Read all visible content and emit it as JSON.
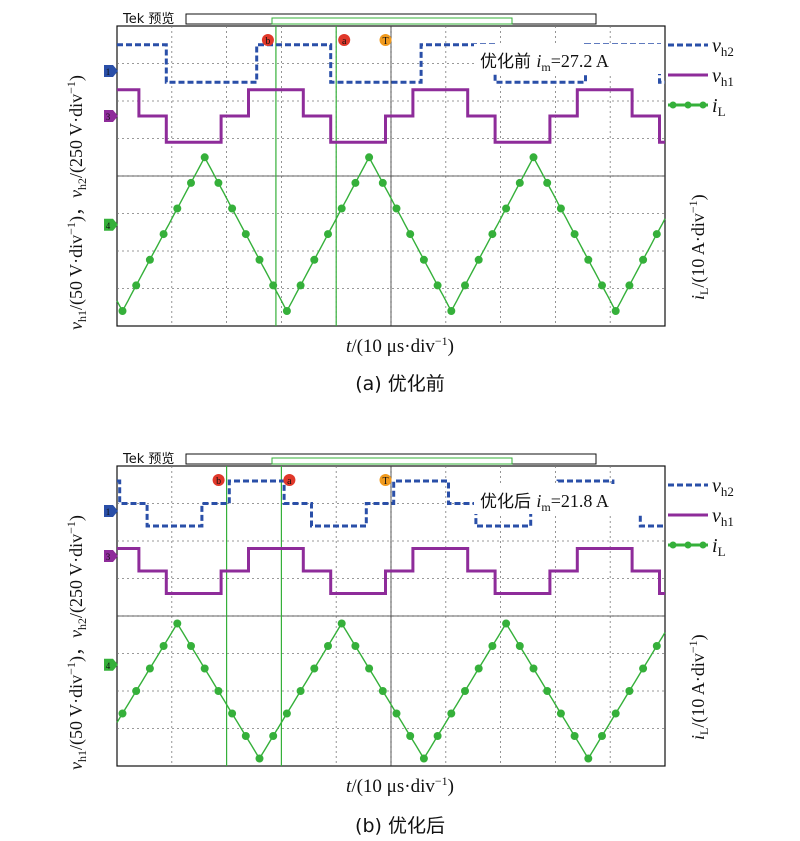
{
  "colors": {
    "vh2": "#2a4fa8",
    "vh1": "#8e2c9a",
    "iL": "#35b03a",
    "marker_red": "#e0382a",
    "marker_orange": "#f09a1e"
  },
  "scope_header": "Tek 预览",
  "channel_markers": [
    "1",
    "3",
    "4"
  ],
  "cursor_labels": {
    "b": "b",
    "a": "a",
    "T": "T"
  },
  "axis_text": {
    "ylabel_left_a": "v",
    "ylabel_left_sub1": "h1",
    "ylabel_left_rest1": "/(50 V·div",
    "ylabel_left_sup": "−1",
    "ylabel_left_close": ")，",
    "ylabel_left_v2": "v",
    "ylabel_left_sub2": "h2",
    "ylabel_left_rest2": "/(250 V·div",
    "ylabel_right_i": "i",
    "ylabel_right_sub": "L",
    "ylabel_right_rest": "/(10 A·div",
    "xlabel_t": "t",
    "xlabel_rest": "/(10 μs·div",
    "sup": "−1",
    "close": ")"
  },
  "legend": {
    "vh2": {
      "sym": "v",
      "sub": "h2"
    },
    "vh1": {
      "sym": "v",
      "sub": "h1"
    },
    "iL": {
      "sym": "i",
      "sub": "L"
    }
  },
  "chart_data": [
    {
      "type": "line",
      "caption": "(a) 优化前",
      "annotation": {
        "prefix": "优化前 ",
        "sym": "i",
        "sub": "m",
        "value": "=27.2 A"
      },
      "x_divisions": 10,
      "y_divisions": 8,
      "x_unit": "10 μs/div",
      "series": [
        {
          "key": "vh2",
          "shape": "two-level square wave",
          "high_div": 7.5,
          "low_div": 6.5,
          "period_div": 3.0,
          "duty": 0.45
        },
        {
          "key": "vh1",
          "shape": "three-level stepped wave",
          "levels_div": [
            6.3,
            5.6,
            4.9
          ],
          "period_div": 3.0
        },
        {
          "key": "iL",
          "shape": "triangle",
          "peak_div": 4.5,
          "trough_div": 0.4,
          "period_div": 3.0,
          "peak_A_approx": 27.2
        }
      ]
    },
    {
      "type": "line",
      "caption": "(b) 优化后",
      "annotation": {
        "prefix": "优化后 ",
        "sym": "i",
        "sub": "m",
        "value": "=21.8 A"
      },
      "x_divisions": 10,
      "y_divisions": 8,
      "x_unit": "10 μs/div",
      "series": [
        {
          "key": "vh2",
          "shape": "three-level stepped wave",
          "levels_div": [
            7.6,
            7.0,
            6.4
          ],
          "period_div": 3.0
        },
        {
          "key": "vh1",
          "shape": "three-level stepped wave",
          "levels_div": [
            5.8,
            5.2,
            4.6
          ],
          "period_div": 3.0
        },
        {
          "key": "iL",
          "shape": "triangle",
          "peak_div": 3.8,
          "trough_div": 0.2,
          "period_div": 3.0,
          "peak_A_approx": 21.8
        }
      ]
    }
  ]
}
